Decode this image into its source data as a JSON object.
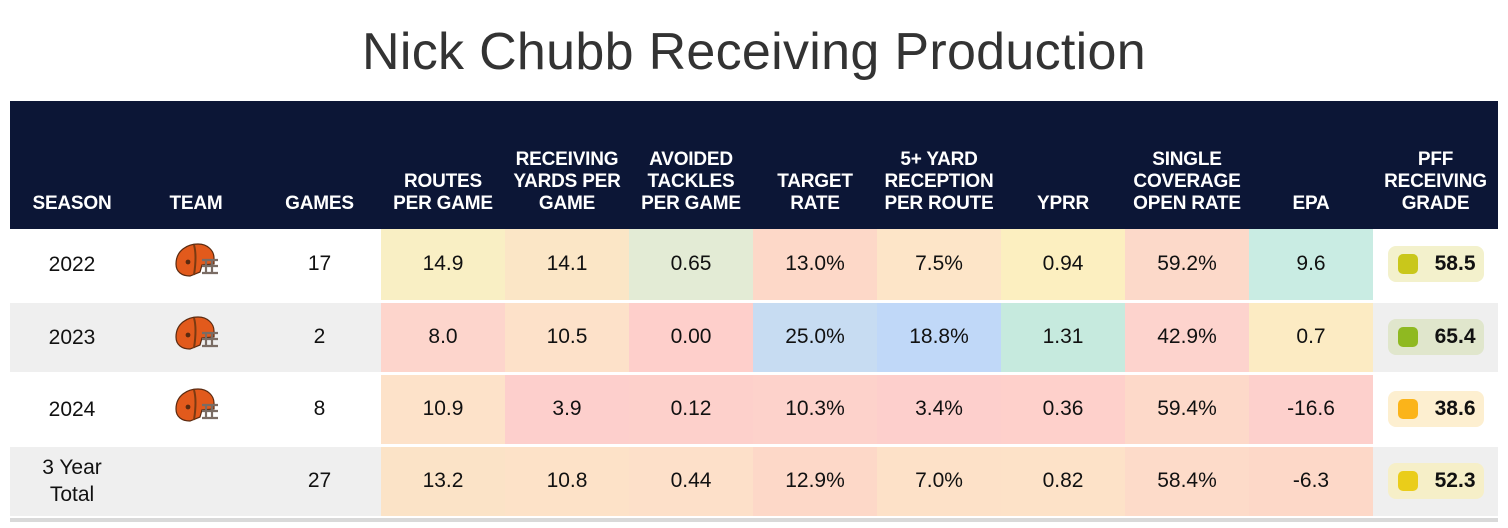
{
  "chart_data": {
    "type": "table",
    "title": "Nick Chubb Receiving Production",
    "columns": [
      {
        "key": "season",
        "label": "SEASON"
      },
      {
        "key": "team",
        "label": "TEAM"
      },
      {
        "key": "games",
        "label": "GAMES"
      },
      {
        "key": "routes_pg",
        "label": "ROUTES PER GAME"
      },
      {
        "key": "rec_yds_pg",
        "label": "RECEIVING YARDS PER GAME"
      },
      {
        "key": "avoided_tackles_pg",
        "label": "AVOIDED TACKLES PER GAME"
      },
      {
        "key": "target_rate",
        "label": "TARGET RATE"
      },
      {
        "key": "five_plus_rec_pr",
        "label": "5+ YARD RECEPTION PER ROUTE"
      },
      {
        "key": "yprr",
        "label": "YPRR"
      },
      {
        "key": "single_cov_open",
        "label": "SINGLE COVERAGE OPEN RATE"
      },
      {
        "key": "epa",
        "label": "EPA"
      },
      {
        "key": "pff_grade",
        "label": "PFF RECEIVING GRADE"
      }
    ],
    "rows": [
      {
        "season": "2022",
        "team_icon": "browns-helmet-icon",
        "games": "17",
        "routes_pg": "14.9",
        "rec_yds_pg": "14.1",
        "avoided_tackles_pg": "0.65",
        "target_rate": "13.0%",
        "five_plus_rec_pr": "7.5%",
        "yprr": "0.94",
        "single_cov_open": "59.2%",
        "epa": "9.6",
        "pff_grade": "58.5"
      },
      {
        "season": "2023",
        "team_icon": "browns-helmet-icon",
        "games": "2",
        "routes_pg": "8.0",
        "rec_yds_pg": "10.5",
        "avoided_tackles_pg": "0.00",
        "target_rate": "25.0%",
        "five_plus_rec_pr": "18.8%",
        "yprr": "1.31",
        "single_cov_open": "42.9%",
        "epa": "0.7",
        "pff_grade": "65.4"
      },
      {
        "season": "2024",
        "team_icon": "browns-helmet-icon",
        "games": "8",
        "routes_pg": "10.9",
        "rec_yds_pg": "3.9",
        "avoided_tackles_pg": "0.12",
        "target_rate": "10.3%",
        "five_plus_rec_pr": "3.4%",
        "yprr": "0.36",
        "single_cov_open": "59.4%",
        "epa": "-16.6",
        "pff_grade": "38.6"
      },
      {
        "season": "3 Year Total",
        "team_icon": "",
        "games": "27",
        "routes_pg": "13.2",
        "rec_yds_pg": "10.8",
        "avoided_tackles_pg": "0.44",
        "target_rate": "12.9%",
        "five_plus_rec_pr": "7.0%",
        "yprr": "0.82",
        "single_cov_open": "58.4%",
        "epa": "-6.3",
        "pff_grade": "52.3"
      }
    ],
    "cell_colors": [
      [
        "#f9efc4",
        "#fbe6c6",
        "#e3ebd5",
        "#fdd8c8",
        "#fde5c8",
        "#fcefc0",
        "#fcd9c9",
        "#c9ece3"
      ],
      [
        "#fdd5cc",
        "#fde1c9",
        "#fecfcb",
        "#c7dcf2",
        "#c0d8f8",
        "#c6eade",
        "#fdd3cd",
        "#fcebc3"
      ],
      [
        "#fde2c9",
        "#fdcfcc",
        "#fdd0cb",
        "#fdd2cb",
        "#fdcfcc",
        "#fed0cb",
        "#fdd9c9",
        "#fdd0cc"
      ],
      [
        "#fbe3c7",
        "#fde2c8",
        "#fde0c9",
        "#fdd8c8",
        "#fde1c8",
        "#fde2c8",
        "#fddbc9",
        "#fdd8c8"
      ]
    ],
    "grade_colors": [
      {
        "pill": "#f3f1cc",
        "square": "#c9c71b"
      },
      {
        "pill": "#e0e6cc",
        "square": "#8fb921"
      },
      {
        "pill": "#fdefd0",
        "square": "#fbb41a"
      },
      {
        "pill": "#f6efc8",
        "square": "#eacd1a"
      }
    ]
  }
}
